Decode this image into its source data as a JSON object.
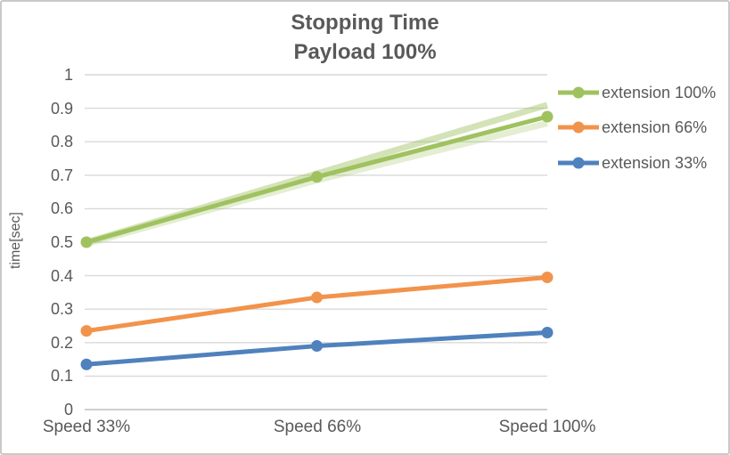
{
  "title": {
    "line1": "Stopping Time",
    "line2": "Payload 100%"
  },
  "colors": {
    "text": "#595959",
    "gridline": "#d9d9d9",
    "baseline": "#cfcfcf",
    "frame_border": "#c9c9c9",
    "series_green": "#9fc25f",
    "series_orange": "#f2934c",
    "series_blue": "#4f81bd"
  },
  "chart_data": {
    "type": "line",
    "title": "Stopping Time",
    "subtitle": "Payload 100%",
    "categories": [
      "Speed 33%",
      "Speed 66%",
      "Speed 100%"
    ],
    "series": [
      {
        "name": "extension 100%",
        "color": "#9fc25f",
        "values": [
          0.5,
          0.695,
          0.875
        ]
      },
      {
        "name": "extension 66%",
        "color": "#f2934c",
        "values": [
          0.235,
          0.335,
          0.395
        ]
      },
      {
        "name": "extension 33%",
        "color": "#4f81bd",
        "values": [
          0.135,
          0.19,
          0.23
        ]
      }
    ],
    "background_lines": [
      {
        "name": "light-green-line-upper",
        "color": "#9fc25f",
        "opacity": 0.45,
        "values": [
          0.5,
          0.705,
          0.91
        ]
      },
      {
        "name": "light-green-line-lower",
        "color": "#9fc25f",
        "opacity": 0.28,
        "values": [
          0.495,
          0.685,
          0.855
        ]
      }
    ],
    "xlabel": "",
    "ylabel": "time[sec]",
    "ylim": [
      0,
      1
    ],
    "yticks": [
      "0",
      "0.1",
      "0.2",
      "0.3",
      "0.4",
      "0.5",
      "0.6",
      "0.7",
      "0.8",
      "0.9",
      "1"
    ],
    "grid": true,
    "legend_position": "right"
  }
}
